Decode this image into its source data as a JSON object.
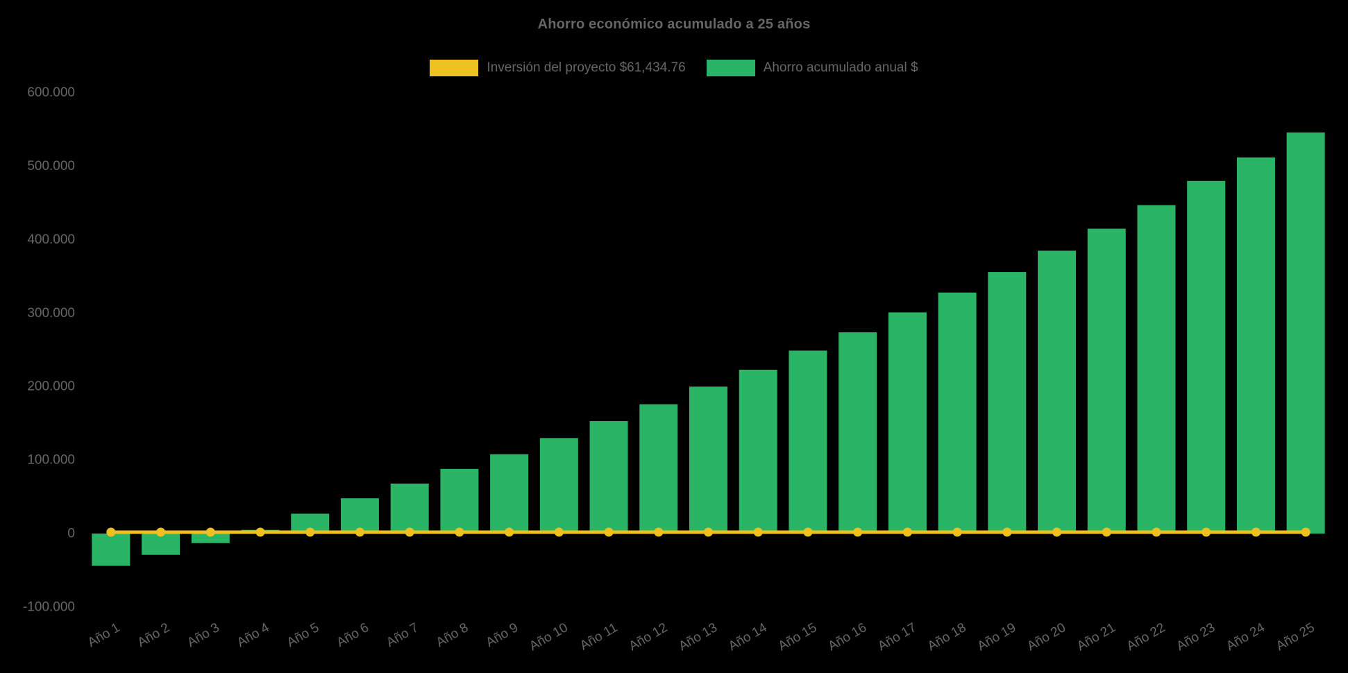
{
  "title": "Ahorro económico acumulado a 25 años",
  "legend": {
    "items": [
      {
        "label": "Inversión del proyecto $61,434.76",
        "color": "#eec120"
      },
      {
        "label": "Ahorro acumulado anual $",
        "color": "#2ab566"
      }
    ]
  },
  "chart_data": {
    "type": "bar",
    "title": "Ahorro económico acumulado a 25 años",
    "background": "#000000",
    "grid": false,
    "legend_position": "top",
    "categories": [
      "Año 1",
      "Año 2",
      "Año 3",
      "Año 4",
      "Año 5",
      "Año 6",
      "Año 7",
      "Año 8",
      "Año 9",
      "Año 10",
      "Año 11",
      "Año 12",
      "Año 13",
      "Año 14",
      "Año 15",
      "Año 16",
      "Año 17",
      "Año 18",
      "Año 19",
      "Año 20",
      "Año 21",
      "Año 22",
      "Año 23",
      "Año 24",
      "Año 25"
    ],
    "series": [
      {
        "name": "Ahorro acumulado anual $",
        "type": "bar",
        "color": "#2ab566",
        "values": [
          -44000,
          -29000,
          -13000,
          5000,
          27000,
          48000,
          68000,
          88000,
          108000,
          130000,
          153000,
          176000,
          200000,
          223000,
          249000,
          274000,
          301000,
          328000,
          356000,
          385000,
          415000,
          447000,
          480000,
          512000,
          546000
        ]
      },
      {
        "name": "Inversión del proyecto $61,434.76",
        "type": "line",
        "color": "#eec120",
        "marker": "circle",
        "investment_amount": 61434.76,
        "plotted_value": 0,
        "points_at_each_category": true
      }
    ],
    "y_axis": {
      "min": -100000,
      "max": 600000,
      "tick_step": 100000,
      "ticks": [
        {
          "value": 600000,
          "label": "600.000"
        },
        {
          "value": 500000,
          "label": "500.000"
        },
        {
          "value": 400000,
          "label": "400.000"
        },
        {
          "value": 300000,
          "label": "300.000"
        },
        {
          "value": 200000,
          "label": "200.000"
        },
        {
          "value": 100000,
          "label": "100.000"
        },
        {
          "value": 0,
          "label": "0"
        },
        {
          "value": -100000,
          "label": "-100.000"
        }
      ]
    },
    "x_axis": {
      "label_rotation_deg": -30
    }
  }
}
